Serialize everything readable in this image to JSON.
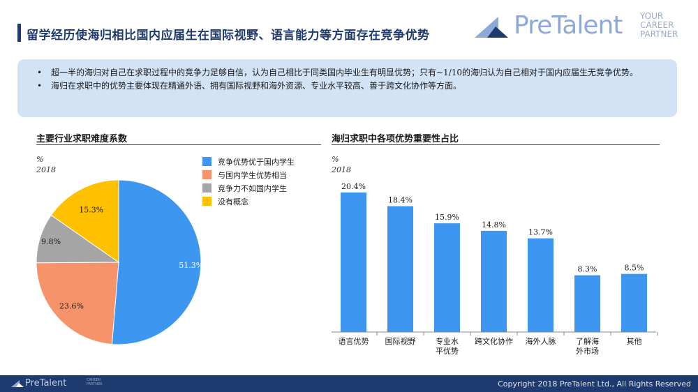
{
  "header": {
    "title": "留学经历使海归相比国内应届生在国际视野、语言能力等方面存在竞争优势"
  },
  "logo": {
    "wordmark": "PreTalent",
    "tagline_1": "YOUR",
    "tagline_2": "CAREER",
    "tagline_3": "PARTNER",
    "color": "#8fa8da"
  },
  "summary": {
    "bullets": [
      "超一半的海归对自己在求职过程中的竞争力足够自信，认为自己相比于同类国内毕业生有明显优势；只有~1/10的海归认为自己相对于国内应届生无竞争优势。",
      "海归在求职中的优势主要体现在精通外语、拥有国际视野和海外资源、专业水平较高、善于跨文化协作等方面。"
    ]
  },
  "chart_data": [
    {
      "type": "pie",
      "title": "主要行业求职难度系数",
      "unit": "%",
      "year": "2018",
      "categories": [
        "竞争优势优于国内学生",
        "与国内学生优势相当",
        "竞争力不如国内学生",
        "没有概念"
      ],
      "values": [
        51.3,
        23.6,
        9.8,
        15.3
      ],
      "labels": [
        "51.3%",
        "23.6%",
        "9.8%",
        "15.3%"
      ],
      "colors": [
        "#3d97f0",
        "#f7936a",
        "#a5a5a5",
        "#ffc000"
      ],
      "legend_position": "top-right"
    },
    {
      "type": "bar",
      "title": "海归求职中各项优势重要性占比",
      "unit": "%",
      "year": "2018",
      "categories": [
        "语言优势",
        "国际视野",
        "专业水平优势",
        "跨文化协作",
        "海外人脉",
        "了解海外市场",
        "其他"
      ],
      "category_lines": [
        [
          "语言优势"
        ],
        [
          "国际视野"
        ],
        [
          "专业水",
          "平优势"
        ],
        [
          "跨文化协作"
        ],
        [
          "海外人脉"
        ],
        [
          "了解海",
          "外市场"
        ],
        [
          "其他"
        ]
      ],
      "values": [
        20.4,
        18.4,
        15.9,
        14.8,
        13.7,
        8.3,
        8.5
      ],
      "labels": [
        "20.4%",
        "18.4%",
        "15.9%",
        "14.8%",
        "13.7%",
        "8.3%",
        "8.5%"
      ],
      "color": "#3d97f0",
      "ylim": [
        0,
        20.4
      ],
      "grid": false
    }
  ],
  "footer": {
    "logo": "PreTalent",
    "tagline_1": "CAREER",
    "tagline_2": "PARTNER",
    "copyright": "Copyright 2018 PreTalent Ltd., All Rights Reserved"
  }
}
